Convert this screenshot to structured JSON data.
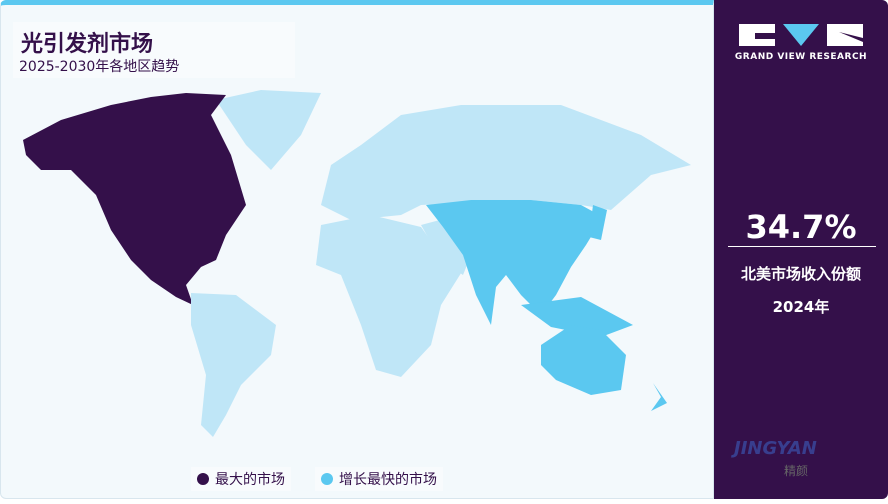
{
  "header": {
    "title": "光引发剂市场",
    "subtitle": "2025-2030年各地区趋势"
  },
  "legend": [
    {
      "label": "最大的市场",
      "color": "#34104a"
    },
    {
      "label": "增长最快的市场",
      "color": "#5bc8f0"
    }
  ],
  "map": {
    "largest_market": "North America",
    "fastest_growing": "Asia Pacific",
    "colors": {
      "largest": "#34104a",
      "fastest": "#5bc8f0",
      "other": "#bfe6f7",
      "background": "#f3f9fc"
    }
  },
  "sidebar": {
    "brand": "GRAND VIEW RESEARCH",
    "stat_value": "34.7%",
    "stat_label": "北美市场收入份额",
    "stat_year": "2024年",
    "watermark": "JINGYAN",
    "watermark_cn": "精颜"
  }
}
